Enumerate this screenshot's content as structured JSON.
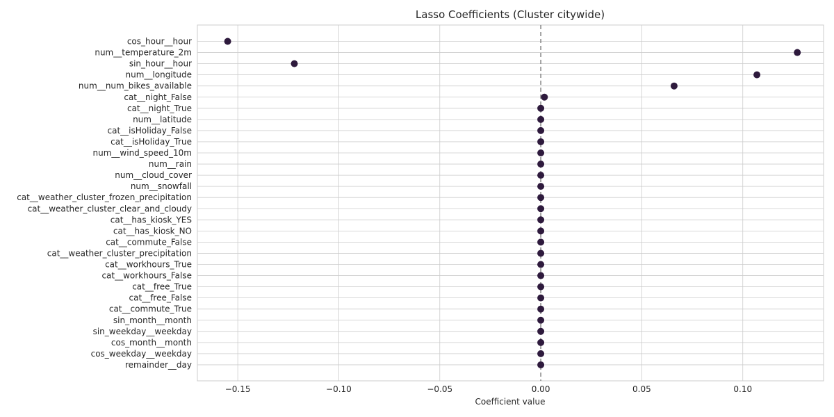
{
  "chart_data": {
    "type": "scatter",
    "title": "Lasso Coefficients (Cluster citywide)",
    "xlabel": "Coefficient value",
    "ylabel": "",
    "xlim": [
      -0.17,
      0.14
    ],
    "xticks": [
      -0.15,
      -0.1,
      -0.05,
      0.0,
      0.05,
      0.1
    ],
    "xtick_labels": [
      "−0.15",
      "−0.10",
      "−0.05",
      "0.00",
      "0.05",
      "0.10"
    ],
    "grid": true,
    "zero_line": {
      "x": 0,
      "style": "dashed"
    },
    "marker_color": "#2e1a3d",
    "zero_line_color": "#808080",
    "grid_color": "#cccccc",
    "categories": [
      "cos_hour__hour",
      "num__temperature_2m",
      "sin_hour__hour",
      "num__longitude",
      "num__num_bikes_available",
      "cat__night_False",
      "cat__night_True",
      "num__latitude",
      "cat__isHoliday_False",
      "cat__isHoliday_True",
      "num__wind_speed_10m",
      "num__rain",
      "num__cloud_cover",
      "num__snowfall",
      "cat__weather_cluster_frozen_precipitation",
      "cat__weather_cluster_clear_and_cloudy",
      "cat__has_kiosk_YES",
      "cat__has_kiosk_NO",
      "cat__commute_False",
      "cat__weather_cluster_precipitation",
      "cat__workhours_True",
      "cat__workhours_False",
      "cat__free_True",
      "cat__free_False",
      "cat__commute_True",
      "sin_month__month",
      "sin_weekday__weekday",
      "cos_month__month",
      "cos_weekday__weekday",
      "remainder__day"
    ],
    "values": [
      -0.155,
      0.127,
      -0.122,
      0.107,
      0.066,
      0.0018,
      0,
      0,
      0,
      0,
      0,
      0,
      0,
      0,
      0,
      0,
      0,
      0,
      0,
      0,
      0,
      0,
      0,
      0,
      0,
      0,
      0,
      0,
      0,
      0
    ]
  }
}
